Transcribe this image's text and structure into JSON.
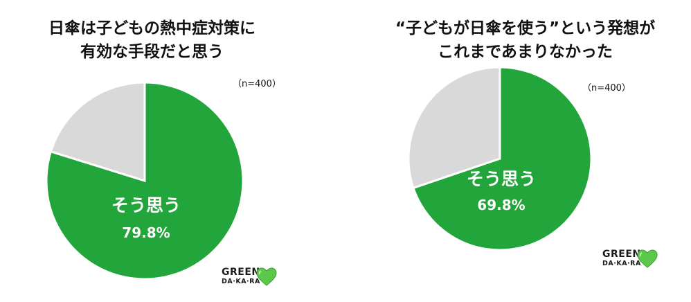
{
  "charts": [
    {
      "title_lines": [
        "日傘は子どもの熱中症対策に",
        "有効な手段だと思う"
      ],
      "n_label": "（n=400）",
      "label": "そう思う",
      "percent_label": "79.8%"
    },
    {
      "title_lines": [
        "“子どもが日傘を使う”という発想が",
        "これまであまりなかった"
      ],
      "n_label": "（n=400）",
      "label": "そう思う",
      "percent_label": "69.8%"
    }
  ],
  "logo": {
    "line1": "GREEN",
    "line2": "DA·KA·RA"
  },
  "colors": {
    "agree": "#22a53a",
    "other": "#d9d9d9",
    "stroke": "#ffffff"
  },
  "chart_data": [
    {
      "type": "pie",
      "title": "日傘は子どもの熱中症対策に有効な手段だと思う",
      "slices": [
        {
          "label": "そう思う",
          "value": 79.8
        },
        {
          "label": "",
          "value": 20.2
        }
      ]
    },
    {
      "type": "pie",
      "title": "“子どもが日傘を使う”という発想がこれまであまりなかった",
      "slices": [
        {
          "label": "そう思う",
          "value": 69.8
        },
        {
          "label": "",
          "value": 30.2
        }
      ]
    }
  ]
}
